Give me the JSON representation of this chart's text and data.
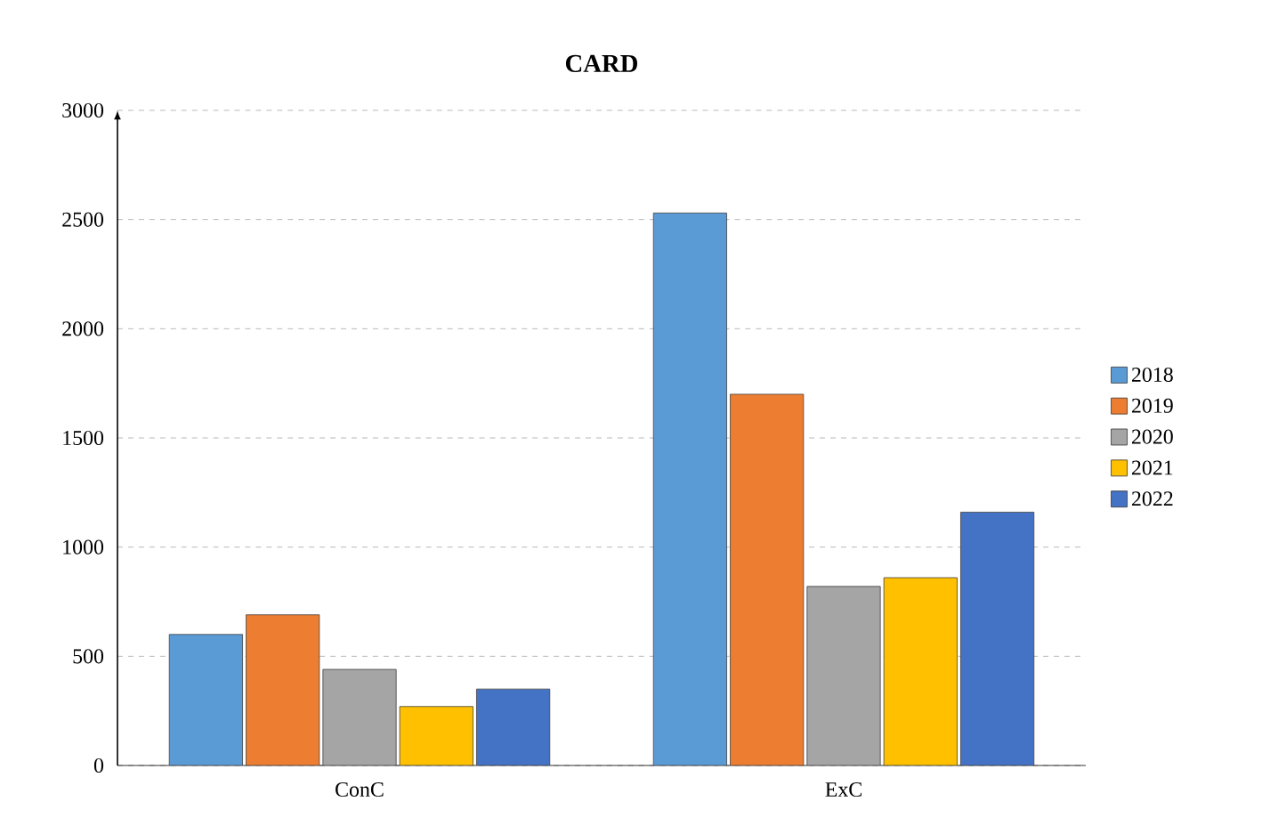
{
  "chart_data": {
    "type": "bar",
    "title": "CARD",
    "categories": [
      "ConC",
      "ExC"
    ],
    "series": [
      {
        "name": "2018",
        "color": "#5b9bd5",
        "values": [
          600,
          2530
        ]
      },
      {
        "name": "2019",
        "color": "#ed7d31",
        "values": [
          690,
          1700
        ]
      },
      {
        "name": "2020",
        "color": "#a5a5a5",
        "values": [
          440,
          820
        ]
      },
      {
        "name": "2021",
        "color": "#ffc000",
        "values": [
          270,
          860
        ]
      },
      {
        "name": "2022",
        "color": "#4472c4",
        "values": [
          350,
          1160
        ]
      }
    ],
    "ylim": [
      0,
      3000
    ],
    "yticks": [
      0,
      500,
      1000,
      1500,
      2000,
      2500,
      3000
    ],
    "grid": "y",
    "legend": "right"
  }
}
